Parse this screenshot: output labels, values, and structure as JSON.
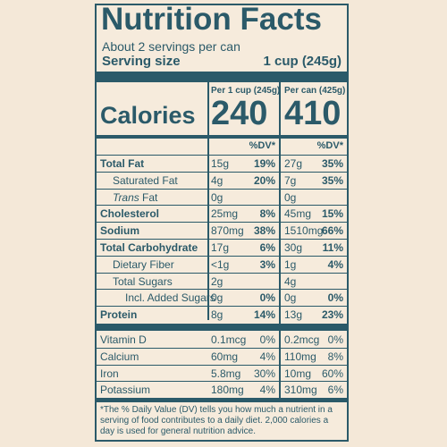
{
  "header": {
    "title": "Nutrition Facts",
    "servings": "About 2 servings per can",
    "serving_size_label": "Serving size",
    "serving_size_value": "1 cup (245g)"
  },
  "columns": [
    "Per 1 cup (245g)",
    "Per can (425g)"
  ],
  "calories": {
    "label": "Calories",
    "values": [
      "240",
      "410"
    ]
  },
  "dv_header": "%DV*",
  "rows": [
    {
      "name": "Total Fat",
      "bold": true,
      "indent": 0,
      "cells": [
        "15g",
        "19%",
        "27g",
        "35%"
      ]
    },
    {
      "name": "Saturated Fat",
      "bold": false,
      "indent": 1,
      "cells": [
        "4g",
        "20%",
        "7g",
        "35%"
      ]
    },
    {
      "name_italic": "Trans",
      "name": "Fat",
      "bold": false,
      "indent": 1,
      "cells": [
        "0g",
        "",
        "0g",
        ""
      ]
    },
    {
      "name": "Cholesterol",
      "bold": true,
      "indent": 0,
      "cells": [
        "25mg",
        "8%",
        "45mg",
        "15%"
      ]
    },
    {
      "name": "Sodium",
      "bold": true,
      "indent": 0,
      "cells": [
        "870mg",
        "38%",
        "1510mg",
        "66%"
      ]
    },
    {
      "name": "Total Carbohydrate",
      "bold": true,
      "indent": 0,
      "cells": [
        "17g",
        "6%",
        "30g",
        "11%"
      ]
    },
    {
      "name": "Dietary Fiber",
      "bold": false,
      "indent": 1,
      "cells": [
        "<1g",
        "3%",
        "1g",
        "4%"
      ]
    },
    {
      "name": "Total Sugars",
      "bold": false,
      "indent": 1,
      "cells": [
        "2g",
        "",
        "4g",
        ""
      ]
    },
    {
      "name": "Incl. Added Sugars",
      "bold": false,
      "indent": 2,
      "cells": [
        "0g",
        "0%",
        "0g",
        "0%"
      ]
    },
    {
      "name": "Protein",
      "bold": true,
      "indent": 0,
      "cells": [
        "8g",
        "14%",
        "13g",
        "23%"
      ]
    }
  ],
  "vitamins": [
    {
      "name": "Vitamin D",
      "cells": [
        "0.1mcg",
        "0%",
        "0.2mcg",
        "0%"
      ]
    },
    {
      "name": "Calcium",
      "cells": [
        "60mg",
        "4%",
        "110mg",
        "8%"
      ]
    },
    {
      "name": "Iron",
      "cells": [
        "5.8mg",
        "30%",
        "10mg",
        "60%"
      ]
    },
    {
      "name": "Potassium",
      "cells": [
        "180mg",
        "4%",
        "310mg",
        "6%"
      ]
    }
  ],
  "footnote": "*The % Daily Value (DV) tells you how much a nutrient in a serving of food contributes to a daily diet. 2,000 calories a day is used for general nutrition advice."
}
